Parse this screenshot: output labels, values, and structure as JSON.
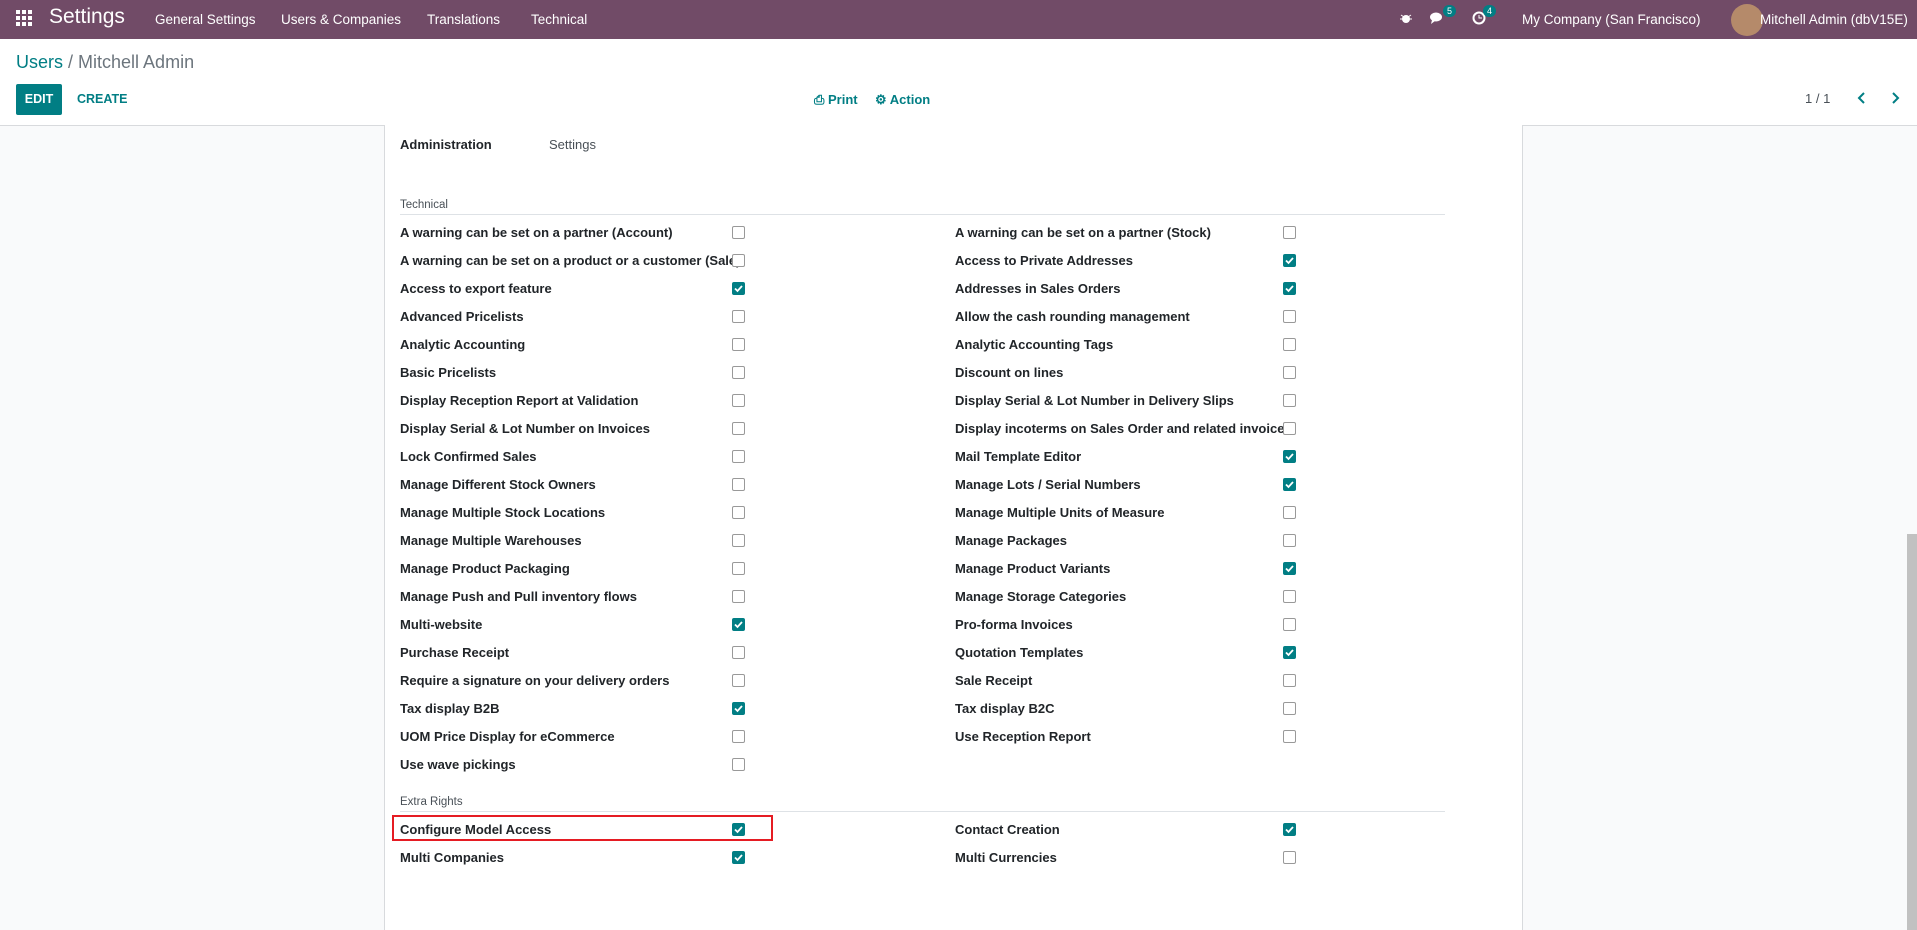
{
  "navbar": {
    "app": "Settings",
    "menus": [
      "General Settings",
      "Users & Companies",
      "Translations",
      "Technical"
    ],
    "messages_badge": "5",
    "activities_badge": "4",
    "company": "My Company (San Francisco)",
    "user": "Mitchell Admin (dbV15E)"
  },
  "breadcrumb": {
    "parent": "Users",
    "current": "Mitchell Admin"
  },
  "buttons": {
    "edit": "EDIT",
    "create": "CREATE",
    "print": "Print",
    "action": "Action"
  },
  "pager": "1 / 1",
  "tabs": [
    "Administration",
    "Settings"
  ],
  "sections": [
    {
      "title": "Technical",
      "left": [
        {
          "label": "A warning can be set on a partner (Account)",
          "checked": false
        },
        {
          "label": "A warning can be set on a product or a customer (Sale)",
          "checked": false
        },
        {
          "label": "Access to export feature",
          "checked": true
        },
        {
          "label": "Advanced Pricelists",
          "checked": false
        },
        {
          "label": "Analytic Accounting",
          "checked": false
        },
        {
          "label": "Basic Pricelists",
          "checked": false
        },
        {
          "label": "Display Reception Report at Validation",
          "checked": false
        },
        {
          "label": "Display Serial & Lot Number on Invoices",
          "checked": false
        },
        {
          "label": "Lock Confirmed Sales",
          "checked": false
        },
        {
          "label": "Manage Different Stock Owners",
          "checked": false
        },
        {
          "label": "Manage Multiple Stock Locations",
          "checked": false
        },
        {
          "label": "Manage Multiple Warehouses",
          "checked": false
        },
        {
          "label": "Manage Product Packaging",
          "checked": false
        },
        {
          "label": "Manage Push and Pull inventory flows",
          "checked": false
        },
        {
          "label": "Multi-website",
          "checked": true
        },
        {
          "label": "Purchase Receipt",
          "checked": false
        },
        {
          "label": "Require a signature on your delivery orders",
          "checked": false
        },
        {
          "label": "Tax display B2B",
          "checked": true
        },
        {
          "label": "UOM Price Display for eCommerce",
          "checked": false
        },
        {
          "label": "Use wave pickings",
          "checked": false
        }
      ],
      "right": [
        {
          "label": "A warning can be set on a partner (Stock)",
          "checked": false
        },
        {
          "label": "Access to Private Addresses",
          "checked": true
        },
        {
          "label": "Addresses in Sales Orders",
          "checked": true
        },
        {
          "label": "Allow the cash rounding management",
          "checked": false
        },
        {
          "label": "Analytic Accounting Tags",
          "checked": false
        },
        {
          "label": "Discount on lines",
          "checked": false
        },
        {
          "label": "Display Serial & Lot Number in Delivery Slips",
          "checked": false
        },
        {
          "label": "Display incoterms on Sales Order and related invoices",
          "checked": false
        },
        {
          "label": "Mail Template Editor",
          "checked": true
        },
        {
          "label": "Manage Lots / Serial Numbers",
          "checked": true
        },
        {
          "label": "Manage Multiple Units of Measure",
          "checked": false
        },
        {
          "label": "Manage Packages",
          "checked": false
        },
        {
          "label": "Manage Product Variants",
          "checked": true
        },
        {
          "label": "Manage Storage Categories",
          "checked": false
        },
        {
          "label": "Pro-forma Invoices",
          "checked": false
        },
        {
          "label": "Quotation Templates",
          "checked": true
        },
        {
          "label": "Sale Receipt",
          "checked": false
        },
        {
          "label": "Tax display B2C",
          "checked": false
        },
        {
          "label": "Use Reception Report",
          "checked": false
        }
      ]
    },
    {
      "title": "Extra Rights",
      "left": [
        {
          "label": "Configure Model Access",
          "checked": true,
          "highlighted": true
        },
        {
          "label": "Multi Companies",
          "checked": true
        }
      ],
      "right": [
        {
          "label": "Contact Creation",
          "checked": true
        },
        {
          "label": "Multi Currencies",
          "checked": false
        }
      ]
    }
  ]
}
